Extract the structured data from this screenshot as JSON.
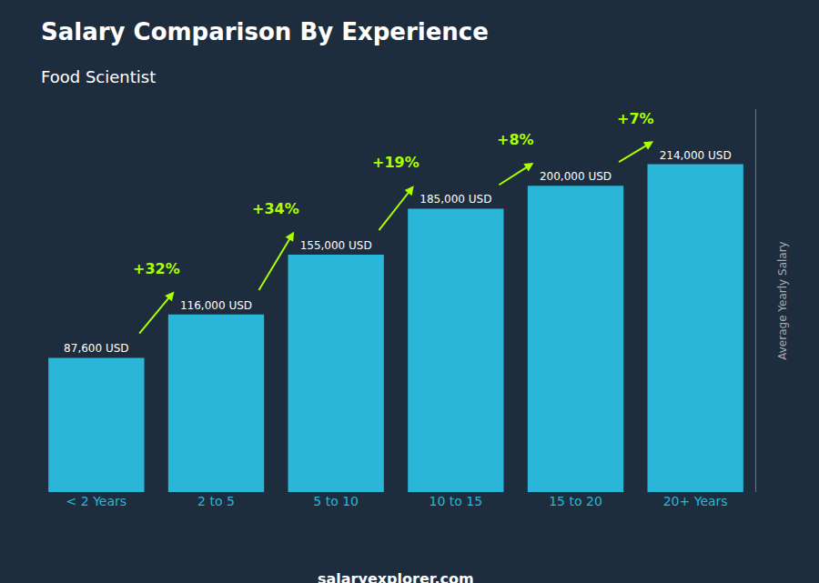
{
  "chart_data": {
    "type": "bar",
    "title": "Salary Comparison By Experience",
    "subtitle": "Food Scientist",
    "ylabel": "Average Yearly Salary",
    "footer": "salaryexplorer.com",
    "categories": [
      "< 2 Years",
      "2 to 5",
      "5 to 10",
      "10 to 15",
      "15 to 20",
      "20+ Years"
    ],
    "values": [
      87600,
      116000,
      155000,
      185000,
      200000,
      214000
    ],
    "value_labels": [
      "87,600 USD",
      "116,000 USD",
      "155,000 USD",
      "185,000 USD",
      "200,000 USD",
      "214,000 USD"
    ],
    "data_labels": true,
    "annotations": [
      "+32%",
      "+34%",
      "+19%",
      "+8%",
      "+7%"
    ],
    "color": "#29b6d8",
    "ylim": [
      0,
      250000
    ],
    "yticks": [],
    "tick_labels": "x",
    "grid": false
  }
}
